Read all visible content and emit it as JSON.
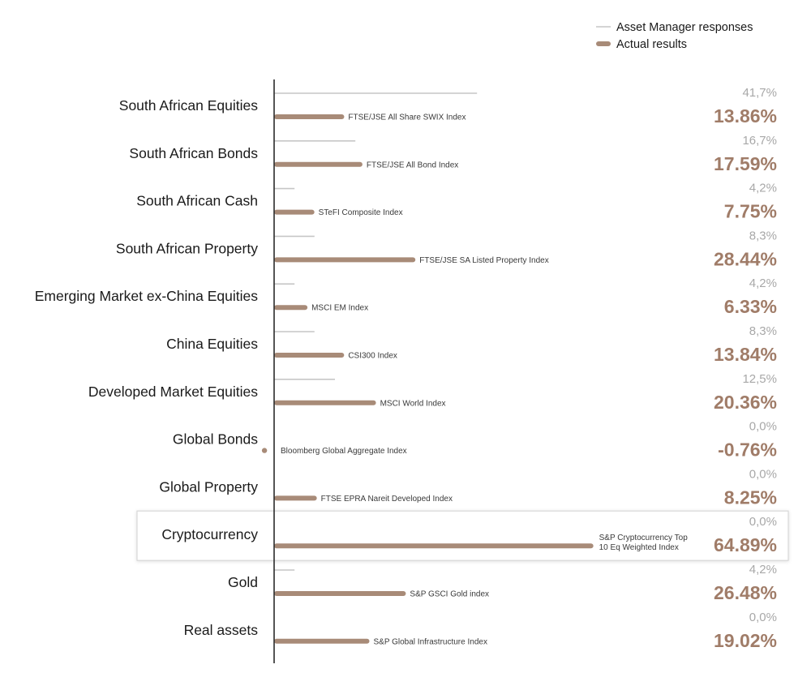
{
  "chart_data": {
    "type": "bar",
    "orientation": "horizontal",
    "legend": {
      "placement": "top-right",
      "entries": [
        {
          "label": "Asset Manager responses",
          "color": "#c6c6c6"
        },
        {
          "label": "Actual results",
          "color": "#a88b78"
        }
      ]
    },
    "colors": {
      "responses": "#c6c6c6",
      "actual": "#a88b78",
      "actual_text": "#a07c68",
      "response_text": "#a8a8a8",
      "highlight_border": "#d8d8d8"
    },
    "highlighted_category": "Cryptocurrency",
    "categories": [
      {
        "name": "South African Equities",
        "responses": 41.7,
        "responses_label": "41,7%",
        "actual": 13.86,
        "actual_label": "13.86%",
        "index": [
          "FTSE/JSE All Share SWIX Index"
        ]
      },
      {
        "name": "South African Bonds",
        "responses": 16.7,
        "responses_label": "16,7%",
        "actual": 17.59,
        "actual_label": "17.59%",
        "index": [
          "FTSE/JSE All Bond Index"
        ]
      },
      {
        "name": "South African Cash",
        "responses": 4.2,
        "responses_label": "4,2%",
        "actual": 7.75,
        "actual_label": "7.75%",
        "index": [
          "STeFI Composite Index"
        ]
      },
      {
        "name": "South African Property",
        "responses": 8.3,
        "responses_label": "8,3%",
        "actual": 28.44,
        "actual_label": "28.44%",
        "index": [
          "FTSE/JSE SA Listed Property Index"
        ]
      },
      {
        "name": "Emerging Market ex-China Equities",
        "responses": 4.2,
        "responses_label": "4,2%",
        "actual": 6.33,
        "actual_label": "6.33%",
        "index": [
          "MSCI EM Index"
        ]
      },
      {
        "name": "China Equities",
        "responses": 8.3,
        "responses_label": "8,3%",
        "actual": 13.84,
        "actual_label": "13.84%",
        "index": [
          "CSI300 Index"
        ]
      },
      {
        "name": "Developed Market Equities",
        "responses": 12.5,
        "responses_label": "12,5%",
        "actual": 20.36,
        "actual_label": "20.36%",
        "index": [
          "MSCI World Index"
        ]
      },
      {
        "name": "Global Bonds",
        "responses": 0.0,
        "responses_label": "0,0%",
        "actual": -0.76,
        "actual_label": "-0.76%",
        "index": [
          "Bloomberg Global Aggregate Index"
        ]
      },
      {
        "name": "Global Property",
        "responses": 0.0,
        "responses_label": "0,0%",
        "actual": 8.25,
        "actual_label": "8.25%",
        "index": [
          "FTSE EPRA Nareit Developed Index"
        ]
      },
      {
        "name": "Cryptocurrency",
        "responses": 0.0,
        "responses_label": "0,0%",
        "actual": 64.89,
        "actual_label": "64.89%",
        "index": [
          "S&P Cryptocurrency Top",
          "10 Eq Weighted Index"
        ]
      },
      {
        "name": "Gold",
        "responses": 4.2,
        "responses_label": "4,2%",
        "actual": 26.48,
        "actual_label": "26.48%",
        "index": [
          "S&P GSCI Gold index"
        ]
      },
      {
        "name": "Real assets",
        "responses": 0.0,
        "responses_label": "0,0%",
        "actual": 19.02,
        "actual_label": "19.02%",
        "index": [
          "S&P Global Infrastructure Index"
        ]
      }
    ]
  }
}
